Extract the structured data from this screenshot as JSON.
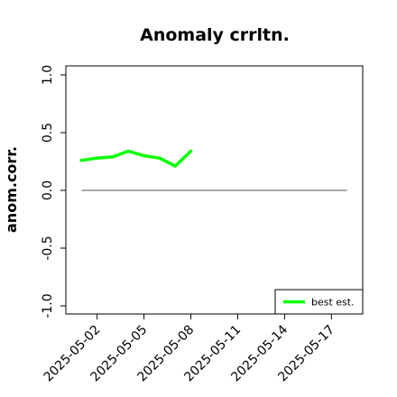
{
  "chart_data": {
    "type": "line",
    "title": "Anomaly crrltn.",
    "xlabel": "",
    "ylabel": "anom.corr.",
    "ylim": [
      -1.0,
      1.0
    ],
    "yticks": [
      "-1.0",
      "-0.5",
      "0.0",
      "0.5",
      "1.0"
    ],
    "xticks": [
      "2025-05-02",
      "2025-05-05",
      "2025-05-08",
      "2025-05-11",
      "2025-05-14",
      "2025-05-17"
    ],
    "highlighted_xtick": "2025-05-08",
    "xlim": [
      "2025-04-30",
      "2025-05-19"
    ],
    "reference_line": {
      "y": 0.0,
      "from": "2025-05-01",
      "to": "2025-05-18"
    },
    "series": [
      {
        "name": "best est.",
        "color": "#00ff00",
        "x": [
          "2025-05-01",
          "2025-05-02",
          "2025-05-03",
          "2025-05-04",
          "2025-05-05",
          "2025-05-06",
          "2025-05-07",
          "2025-05-08"
        ],
        "values": [
          0.26,
          0.28,
          0.29,
          0.34,
          0.3,
          0.28,
          0.21,
          0.34
        ]
      }
    ],
    "legend": {
      "position": "bottom-right"
    },
    "colors": {
      "highlight_tick": "#228b22",
      "reference": "#555555"
    }
  }
}
